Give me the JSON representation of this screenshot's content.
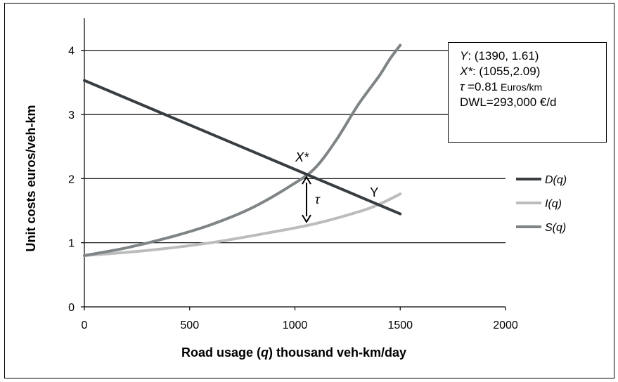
{
  "chart_data": {
    "type": "line",
    "xlabel_parts": [
      "Road usage (",
      "q",
      ") thousand veh-km/day"
    ],
    "ylabel": "Unit costs euros/veh-km",
    "xlim": [
      0,
      2000
    ],
    "ylim": [
      0,
      4.5
    ],
    "x_ticks": [
      "0",
      "500",
      "1000",
      "1500",
      "2000"
    ],
    "y_ticks": [
      "0",
      "1",
      "2",
      "3",
      "4"
    ],
    "grid": "horizontal",
    "legend_position": "right",
    "series": [
      {
        "name": "D(q)",
        "color": "#383d41",
        "points": [
          [
            0,
            3.53
          ],
          [
            1500,
            1.45
          ]
        ]
      },
      {
        "name": "I(q)",
        "color": "#bcbcbc",
        "points": [
          [
            0,
            0.8
          ],
          [
            300,
            0.88
          ],
          [
            600,
            1.0
          ],
          [
            900,
            1.17
          ],
          [
            1100,
            1.3
          ],
          [
            1300,
            1.48
          ],
          [
            1400,
            1.6
          ],
          [
            1500,
            1.76
          ]
        ]
      },
      {
        "name": "S(q)",
        "color": "#7f8487",
        "points": [
          [
            0,
            0.8
          ],
          [
            200,
            0.92
          ],
          [
            400,
            1.08
          ],
          [
            600,
            1.28
          ],
          [
            800,
            1.55
          ],
          [
            1000,
            1.93
          ],
          [
            1100,
            2.18
          ],
          [
            1200,
            2.62
          ],
          [
            1300,
            3.15
          ],
          [
            1400,
            3.6
          ],
          [
            1450,
            3.86
          ],
          [
            1500,
            4.08
          ]
        ]
      }
    ],
    "annotations": {
      "x_star": {
        "label": "X*",
        "x": 1055,
        "y": 2.09
      },
      "y_point": {
        "label": "Y",
        "x": 1390,
        "y": 1.61
      },
      "tau": {
        "label": "τ",
        "x": 1055,
        "y_top": 2.09,
        "y_bottom": 1.28
      }
    }
  },
  "info_box": {
    "line1_var": "Y",
    "line1_val": ": (1390, 1.61)",
    "line2_var": "X*",
    "line2_val": ": (1055,2.09)",
    "line3_var": "τ",
    "line3_val": " =0.81",
    "line3_unit": " Euros/km",
    "line4": "DWL=293,000 €/d"
  }
}
